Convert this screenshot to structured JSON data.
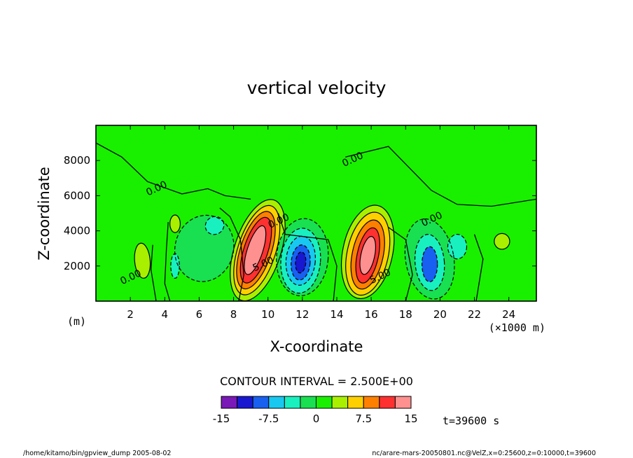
{
  "chart_data": {
    "type": "contour",
    "title": "vertical velocity",
    "xlabel": "X-coordinate",
    "ylabel": "Z-coordinate",
    "x_unit": "(×1000 m)",
    "y_unit": "(m)",
    "xlim": [
      0,
      25.6
    ],
    "ylim": [
      0,
      10000
    ],
    "x_ticks": [
      2,
      4,
      6,
      8,
      10,
      12,
      14,
      16,
      18,
      20,
      22,
      24
    ],
    "y_ticks": [
      2000,
      4000,
      6000,
      8000
    ],
    "contour_interval_text": "CONTOUR INTERVAL = 2.500E+00",
    "time_text": "t=39600 s",
    "contour_labels": [
      {
        "text": "0.00",
        "x": 3.6,
        "y": 6250
      },
      {
        "text": "0.00",
        "x": 2.1,
        "y": 1200
      },
      {
        "text": "5.00",
        "x": 9.8,
        "y": 1950
      },
      {
        "text": "0.00",
        "x": 10.7,
        "y": 4400
      },
      {
        "text": "0.00",
        "x": 15.0,
        "y": 7900
      },
      {
        "text": "0.00",
        "x": 19.6,
        "y": 4500
      },
      {
        "text": "5.00",
        "x": 16.6,
        "y": 1250
      }
    ],
    "colorbar": {
      "levels": [
        -15,
        -12.5,
        -10,
        -7.5,
        -5,
        -2.5,
        0,
        2.5,
        5,
        7.5,
        10,
        12.5,
        15
      ],
      "tick_labels": [
        "-15",
        "-7.5",
        "0",
        "7.5",
        "15"
      ],
      "tick_values": [
        -15,
        -7.5,
        0,
        7.5,
        15
      ],
      "colors": [
        "#7a18b8",
        "#1818d0",
        "#1860f0",
        "#18c8f0",
        "#18f0c0",
        "#18e050",
        "#18f000",
        "#a8f000",
        "#ffd000",
        "#ff8000",
        "#ff3030",
        "#ff9090"
      ]
    },
    "features": [
      {
        "sign": "positive",
        "x": 9.3,
        "y": 2900,
        "peak": 15
      },
      {
        "sign": "positive",
        "x": 15.8,
        "y": 2600,
        "peak": 15
      },
      {
        "sign": "negative",
        "x": 11.9,
        "y": 2200,
        "peak": -12.5
      },
      {
        "sign": "negative",
        "x": 19.4,
        "y": 2000,
        "peak": -10
      },
      {
        "sign": "negative",
        "x": 6.9,
        "y": 3000,
        "peak": -5
      },
      {
        "sign": "negative",
        "x": 21.0,
        "y": 3000,
        "peak": -7.5
      },
      {
        "sign": "positive",
        "x": 2.7,
        "y": 2300,
        "peak": 2.5
      },
      {
        "sign": "positive",
        "x": 23.6,
        "y": 3400,
        "peak": 2.5
      }
    ]
  },
  "footer": {
    "left": "/home/kitamo/bin/gpview_dump  2005-08-02",
    "right": "nc/arare-mars-20050801.nc@VelZ,x=0:25600,z=0:10000,t=39600"
  }
}
